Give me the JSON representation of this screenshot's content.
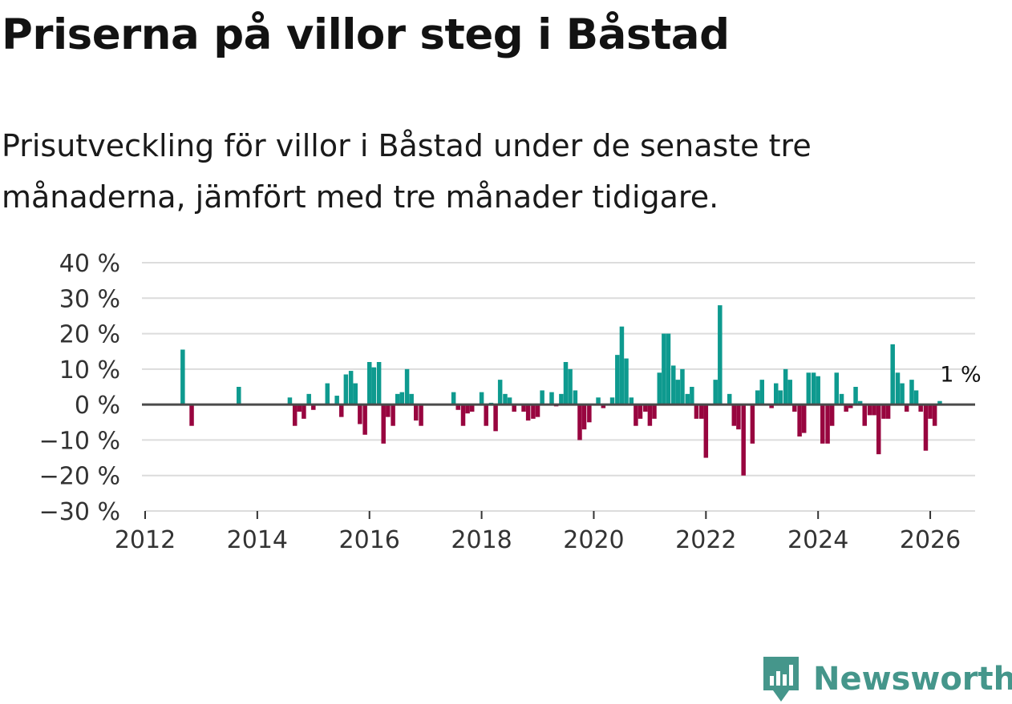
{
  "title": "Priserna på villor steg i Båstad",
  "subtitle": "Prisutveckling för villor i Båstad under de senaste tre månaderna, jämfört med tre månader tidigare.",
  "brand": {
    "name": "Newsworthy",
    "logo_icon": "newsworthy-bar-chart-icon",
    "color": "#45968b"
  },
  "colors": {
    "positive": "#0e9a8f",
    "negative": "#98053f",
    "grid": "#dcdcdc",
    "zero_line": "#4a4a4a",
    "text": "#333333"
  },
  "chart_data": {
    "type": "bar",
    "title": "Priserna på villor steg i Båstad",
    "xlabel": "",
    "ylabel": "",
    "ylim": [
      -30,
      40
    ],
    "xlim": [
      2012.0,
      2026.8
    ],
    "y_ticks": [
      40,
      30,
      20,
      10,
      0,
      -10,
      -20,
      -30
    ],
    "y_tick_labels": [
      "40 %",
      "30 %",
      "20 %",
      "10 %",
      "0 %",
      "−10 %",
      "−20 %",
      "−30 %"
    ],
    "x_ticks": [
      2012,
      2014,
      2016,
      2018,
      2020,
      2022,
      2024,
      2026
    ],
    "x_tick_labels": [
      "2012",
      "2014",
      "2016",
      "2018",
      "2020",
      "2022",
      "2024",
      "2026"
    ],
    "grid": true,
    "last_value_label": "1 %",
    "series": [
      {
        "name": "Prisutveckling",
        "points": [
          {
            "x": 2012.67,
            "y": 15.5
          },
          {
            "x": 2012.83,
            "y": -6
          },
          {
            "x": 2013.67,
            "y": 5
          },
          {
            "x": 2014.58,
            "y": 2
          },
          {
            "x": 2014.67,
            "y": -6
          },
          {
            "x": 2014.75,
            "y": -2
          },
          {
            "x": 2014.83,
            "y": -4
          },
          {
            "x": 2014.92,
            "y": 3
          },
          {
            "x": 2015.0,
            "y": -1.5
          },
          {
            "x": 2015.25,
            "y": 6
          },
          {
            "x": 2015.42,
            "y": 2.5
          },
          {
            "x": 2015.5,
            "y": -3.5
          },
          {
            "x": 2015.58,
            "y": 8.5
          },
          {
            "x": 2015.67,
            "y": 9.5
          },
          {
            "x": 2015.75,
            "y": 6
          },
          {
            "x": 2015.83,
            "y": -5.5
          },
          {
            "x": 2015.92,
            "y": -8.5
          },
          {
            "x": 2016.0,
            "y": 12
          },
          {
            "x": 2016.08,
            "y": 10.5
          },
          {
            "x": 2016.17,
            "y": 12
          },
          {
            "x": 2016.25,
            "y": -11
          },
          {
            "x": 2016.33,
            "y": -3.5
          },
          {
            "x": 2016.42,
            "y": -6
          },
          {
            "x": 2016.5,
            "y": 3
          },
          {
            "x": 2016.58,
            "y": 3.5
          },
          {
            "x": 2016.67,
            "y": 10
          },
          {
            "x": 2016.75,
            "y": 3
          },
          {
            "x": 2016.83,
            "y": -4.5
          },
          {
            "x": 2016.92,
            "y": -6
          },
          {
            "x": 2017.5,
            "y": 3.5
          },
          {
            "x": 2017.58,
            "y": -1.5
          },
          {
            "x": 2017.67,
            "y": -6
          },
          {
            "x": 2017.75,
            "y": -2.5
          },
          {
            "x": 2017.83,
            "y": -2
          },
          {
            "x": 2018.0,
            "y": 3.5
          },
          {
            "x": 2018.08,
            "y": -6
          },
          {
            "x": 2018.17,
            "y": 0.5
          },
          {
            "x": 2018.25,
            "y": -7.5
          },
          {
            "x": 2018.33,
            "y": 7
          },
          {
            "x": 2018.42,
            "y": 3
          },
          {
            "x": 2018.5,
            "y": 2
          },
          {
            "x": 2018.58,
            "y": -2
          },
          {
            "x": 2018.75,
            "y": -2
          },
          {
            "x": 2018.83,
            "y": -4.5
          },
          {
            "x": 2018.92,
            "y": -4
          },
          {
            "x": 2019.0,
            "y": -3.5
          },
          {
            "x": 2019.08,
            "y": 4
          },
          {
            "x": 2019.25,
            "y": 3.5
          },
          {
            "x": 2019.33,
            "y": -0.5
          },
          {
            "x": 2019.42,
            "y": 3
          },
          {
            "x": 2019.5,
            "y": 12
          },
          {
            "x": 2019.58,
            "y": 10
          },
          {
            "x": 2019.67,
            "y": 4
          },
          {
            "x": 2019.75,
            "y": -10
          },
          {
            "x": 2019.83,
            "y": -7
          },
          {
            "x": 2019.92,
            "y": -5
          },
          {
            "x": 2020.08,
            "y": 2
          },
          {
            "x": 2020.17,
            "y": -1
          },
          {
            "x": 2020.33,
            "y": 2
          },
          {
            "x": 2020.42,
            "y": 14
          },
          {
            "x": 2020.5,
            "y": 22
          },
          {
            "x": 2020.58,
            "y": 13
          },
          {
            "x": 2020.67,
            "y": 2
          },
          {
            "x": 2020.75,
            "y": -6
          },
          {
            "x": 2020.83,
            "y": -4
          },
          {
            "x": 2020.92,
            "y": -2
          },
          {
            "x": 2021.0,
            "y": -6
          },
          {
            "x": 2021.08,
            "y": -4
          },
          {
            "x": 2021.17,
            "y": 9
          },
          {
            "x": 2021.25,
            "y": 20
          },
          {
            "x": 2021.33,
            "y": 20
          },
          {
            "x": 2021.42,
            "y": 11
          },
          {
            "x": 2021.5,
            "y": 7
          },
          {
            "x": 2021.58,
            "y": 10
          },
          {
            "x": 2021.67,
            "y": 3
          },
          {
            "x": 2021.75,
            "y": 5
          },
          {
            "x": 2021.83,
            "y": -4
          },
          {
            "x": 2021.92,
            "y": -4
          },
          {
            "x": 2022.0,
            "y": -15
          },
          {
            "x": 2022.17,
            "y": 7
          },
          {
            "x": 2022.25,
            "y": 28
          },
          {
            "x": 2022.42,
            "y": 3
          },
          {
            "x": 2022.5,
            "y": -6
          },
          {
            "x": 2022.58,
            "y": -7
          },
          {
            "x": 2022.67,
            "y": -20
          },
          {
            "x": 2022.83,
            "y": -11
          },
          {
            "x": 2022.92,
            "y": 4
          },
          {
            "x": 2023.0,
            "y": 7
          },
          {
            "x": 2023.17,
            "y": -1
          },
          {
            "x": 2023.25,
            "y": 6
          },
          {
            "x": 2023.33,
            "y": 4
          },
          {
            "x": 2023.42,
            "y": 10
          },
          {
            "x": 2023.5,
            "y": 7
          },
          {
            "x": 2023.58,
            "y": -2
          },
          {
            "x": 2023.67,
            "y": -9
          },
          {
            "x": 2023.75,
            "y": -8
          },
          {
            "x": 2023.83,
            "y": 9
          },
          {
            "x": 2023.92,
            "y": 9
          },
          {
            "x": 2024.0,
            "y": 8
          },
          {
            "x": 2024.08,
            "y": -11
          },
          {
            "x": 2024.17,
            "y": -11
          },
          {
            "x": 2024.25,
            "y": -6
          },
          {
            "x": 2024.33,
            "y": 9
          },
          {
            "x": 2024.42,
            "y": 3
          },
          {
            "x": 2024.5,
            "y": -2
          },
          {
            "x": 2024.58,
            "y": -1
          },
          {
            "x": 2024.67,
            "y": 5
          },
          {
            "x": 2024.75,
            "y": 1
          },
          {
            "x": 2024.83,
            "y": -6
          },
          {
            "x": 2024.92,
            "y": -3
          },
          {
            "x": 2025.0,
            "y": -3
          },
          {
            "x": 2025.08,
            "y": -14
          },
          {
            "x": 2025.17,
            "y": -4
          },
          {
            "x": 2025.25,
            "y": -4
          },
          {
            "x": 2025.33,
            "y": 17
          },
          {
            "x": 2025.42,
            "y": 9
          },
          {
            "x": 2025.5,
            "y": 6
          },
          {
            "x": 2025.58,
            "y": -2
          },
          {
            "x": 2025.67,
            "y": 7
          },
          {
            "x": 2025.75,
            "y": 4
          },
          {
            "x": 2025.83,
            "y": -2
          },
          {
            "x": 2025.92,
            "y": -13
          },
          {
            "x": 2026.0,
            "y": -4
          },
          {
            "x": 2026.08,
            "y": -6
          },
          {
            "x": 2026.17,
            "y": 1
          }
        ]
      }
    ]
  }
}
